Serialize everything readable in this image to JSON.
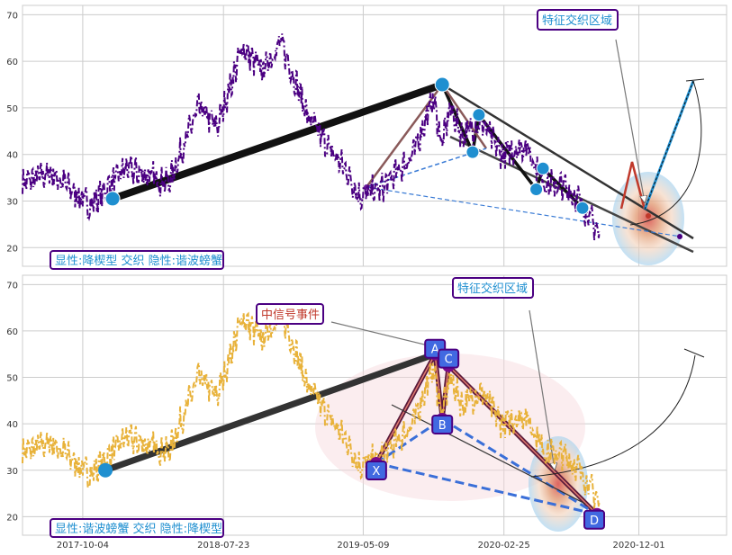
{
  "colors": {
    "top_price": "#4b0082",
    "bottom_price": "#e8b23a",
    "thick_line": "#111111",
    "blue_node": "#1f8fd0",
    "label_border": "#4b0082",
    "label_text": "#1f8fd0",
    "signal_text": "#c0392b",
    "xabcd_fill": "#4169e1",
    "grid": "#cccccc"
  },
  "chart_data": [
    {
      "type": "line",
      "panel": "top",
      "ylim": [
        16,
        72
      ],
      "yticks": [
        20,
        30,
        40,
        50,
        60,
        70
      ],
      "grid": true,
      "series": [
        {
          "values": "price-like line (purple dash-dot)"
        }
      ],
      "annotations": {
        "corner_label": "显性:降楔型 交织 隐性:谐波螃蟹",
        "feature_label": "特征交织区域",
        "nodes": [
          {
            "date": "2017-12-05",
            "value": 30.5
          },
          {
            "date": "2019-10-20",
            "value": 55
          },
          {
            "date": "2020-01-04",
            "value": 48.5
          },
          {
            "date": "2019-12-22",
            "value": 40.5
          },
          {
            "date": "2020-05-02",
            "value": 32.5
          },
          {
            "date": "2020-05-16",
            "value": 37
          },
          {
            "date": "2020-08-06",
            "value": 28.5
          }
        ]
      }
    },
    {
      "type": "line",
      "panel": "bottom",
      "ylim": [
        16,
        72
      ],
      "yticks": [
        20,
        30,
        40,
        50,
        60,
        70
      ],
      "xticks": [
        "2017-10-04",
        "2018-07-23",
        "2019-05-09",
        "2020-02-25",
        "2020-12-01"
      ],
      "grid": true,
      "series": [
        {
          "values": "price-like line (gold dash-dot)"
        }
      ],
      "annotations": {
        "corner_label": "显性:谐波螃蟹 交织 隐性:降楔型",
        "feature_label": "特征交织区域",
        "signal_label": "中信号事件",
        "points": [
          {
            "name": "X",
            "date": "2019-06-05",
            "value": 31.5
          },
          {
            "name": "A",
            "date": "2019-10-05",
            "value": 55
          },
          {
            "name": "B",
            "date": "2019-10-20",
            "value": 41
          },
          {
            "name": "C",
            "date": "2019-11-02",
            "value": 52.5
          },
          {
            "name": "D",
            "date": "2020-09-05",
            "value": 20.5
          }
        ]
      }
    }
  ]
}
